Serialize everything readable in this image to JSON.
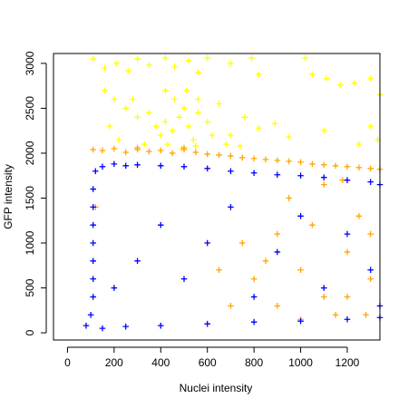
{
  "chart_data": {
    "type": "scatter",
    "title": "",
    "xlabel": "Nuclei intensity",
    "ylabel": "GFP intensity",
    "xlim": [
      -60,
      1340
    ],
    "ylim": [
      -80,
      3110
    ],
    "xticks": [
      0,
      200,
      400,
      600,
      800,
      1000,
      1200
    ],
    "yticks": [
      0,
      500,
      1000,
      1500,
      2000,
      2500,
      3000
    ],
    "xtick_labels": [
      "0",
      "200",
      "400",
      "600",
      "800",
      "1000",
      "1200"
    ],
    "ytick_labels": [
      "0",
      "500",
      "1000",
      "1500",
      "2000",
      "2500",
      "3000"
    ],
    "marker": "plus",
    "grid": false,
    "series": [
      {
        "color": "#FFFF00",
        "points": [
          [
            110,
            3050
          ],
          [
            160,
            2950
          ],
          [
            210,
            3000
          ],
          [
            260,
            2920
          ],
          [
            300,
            3050
          ],
          [
            350,
            2980
          ],
          [
            420,
            3060
          ],
          [
            460,
            2960
          ],
          [
            520,
            3030
          ],
          [
            560,
            2900
          ],
          [
            600,
            3060
          ],
          [
            700,
            3000
          ],
          [
            790,
            3060
          ],
          [
            820,
            2880
          ],
          [
            1020,
            3060
          ],
          [
            1050,
            2880
          ],
          [
            1110,
            2830
          ],
          [
            1170,
            2760
          ],
          [
            1230,
            2780
          ],
          [
            1300,
            2830
          ],
          [
            1340,
            2650
          ],
          [
            160,
            2700
          ],
          [
            200,
            2600
          ],
          [
            250,
            2500
          ],
          [
            300,
            2400
          ],
          [
            350,
            2450
          ],
          [
            380,
            2300
          ],
          [
            400,
            2200
          ],
          [
            420,
            2350
          ],
          [
            450,
            2250
          ],
          [
            480,
            2400
          ],
          [
            500,
            2500
          ],
          [
            520,
            2300
          ],
          [
            540,
            2150
          ],
          [
            560,
            2450
          ],
          [
            600,
            2350
          ],
          [
            650,
            2550
          ],
          [
            700,
            2200
          ],
          [
            760,
            2400
          ],
          [
            820,
            2280
          ],
          [
            890,
            2330
          ],
          [
            950,
            2180
          ],
          [
            1100,
            2250
          ],
          [
            1250,
            2100
          ],
          [
            1300,
            2300
          ],
          [
            1330,
            2150
          ],
          [
            180,
            2300
          ],
          [
            220,
            2150
          ],
          [
            280,
            2600
          ],
          [
            330,
            2100
          ],
          [
            420,
            2700
          ],
          [
            460,
            2600
          ],
          [
            510,
            2700
          ],
          [
            560,
            2600
          ],
          [
            620,
            2200
          ],
          [
            680,
            2100
          ],
          [
            740,
            2080
          ],
          [
            430,
            2100
          ],
          [
            490,
            2050
          ],
          [
            550,
            2080
          ]
        ]
      },
      {
        "color": "#FFA500",
        "points": [
          [
            110,
            2040
          ],
          [
            150,
            2030
          ],
          [
            200,
            2050
          ],
          [
            250,
            2010
          ],
          [
            300,
            2040
          ],
          [
            350,
            2020
          ],
          [
            400,
            2030
          ],
          [
            450,
            2000
          ],
          [
            500,
            2040
          ],
          [
            550,
            2010
          ],
          [
            600,
            1990
          ],
          [
            650,
            1980
          ],
          [
            700,
            1970
          ],
          [
            750,
            1950
          ],
          [
            800,
            1940
          ],
          [
            850,
            1930
          ],
          [
            900,
            1920
          ],
          [
            950,
            1910
          ],
          [
            1000,
            1900
          ],
          [
            1050,
            1880
          ],
          [
            1100,
            1870
          ],
          [
            1150,
            1860
          ],
          [
            1200,
            1850
          ],
          [
            1250,
            1840
          ],
          [
            1300,
            1830
          ],
          [
            1340,
            1820
          ],
          [
            300,
            2060
          ],
          [
            500,
            2060
          ],
          [
            120,
            1400
          ],
          [
            900,
            1100
          ],
          [
            1000,
            700
          ],
          [
            1100,
            400
          ],
          [
            1200,
            900
          ],
          [
            800,
            600
          ],
          [
            700,
            300
          ],
          [
            1150,
            200
          ],
          [
            1250,
            1300
          ],
          [
            1300,
            600
          ],
          [
            950,
            1500
          ],
          [
            1050,
            1200
          ],
          [
            850,
            800
          ],
          [
            1200,
            400
          ],
          [
            900,
            300
          ],
          [
            1300,
            1100
          ],
          [
            1100,
            1650
          ],
          [
            750,
            1000
          ],
          [
            1000,
            150
          ],
          [
            1280,
            200
          ],
          [
            650,
            700
          ],
          [
            1180,
            1700
          ]
        ]
      },
      {
        "color": "#0000FF",
        "points": [
          [
            80,
            80
          ],
          [
            100,
            200
          ],
          [
            110,
            400
          ],
          [
            110,
            600
          ],
          [
            110,
            800
          ],
          [
            110,
            1000
          ],
          [
            110,
            1200
          ],
          [
            110,
            1400
          ],
          [
            110,
            1600
          ],
          [
            120,
            1800
          ],
          [
            150,
            1850
          ],
          [
            200,
            1880
          ],
          [
            250,
            1860
          ],
          [
            300,
            1870
          ],
          [
            400,
            1860
          ],
          [
            500,
            1850
          ],
          [
            600,
            1830
          ],
          [
            700,
            1800
          ],
          [
            800,
            1780
          ],
          [
            900,
            1760
          ],
          [
            1000,
            1750
          ],
          [
            1100,
            1730
          ],
          [
            1200,
            1700
          ],
          [
            1300,
            1680
          ],
          [
            1340,
            1650
          ],
          [
            150,
            50
          ],
          [
            250,
            70
          ],
          [
            400,
            80
          ],
          [
            600,
            100
          ],
          [
            800,
            120
          ],
          [
            1000,
            130
          ],
          [
            1200,
            150
          ],
          [
            1340,
            170
          ],
          [
            200,
            500
          ],
          [
            300,
            800
          ],
          [
            400,
            1200
          ],
          [
            500,
            600
          ],
          [
            600,
            1000
          ],
          [
            700,
            1400
          ],
          [
            800,
            400
          ],
          [
            900,
            900
          ],
          [
            1000,
            1300
          ],
          [
            1100,
            500
          ],
          [
            1200,
            1100
          ],
          [
            1300,
            700
          ],
          [
            1340,
            300
          ]
        ]
      }
    ]
  }
}
